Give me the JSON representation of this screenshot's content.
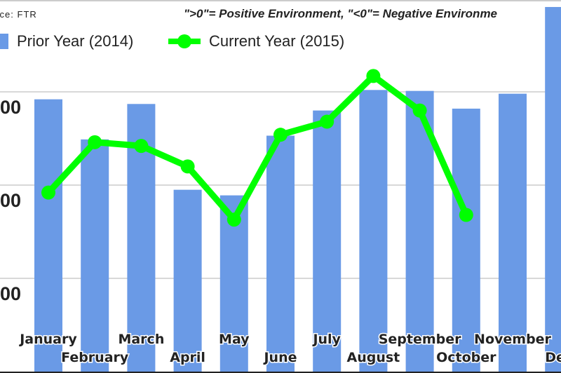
{
  "source": "urce: FTR",
  "subtitle": "\">0\"= Positive Environment, \"<0\"= Negative Environme",
  "chart_data": {
    "type": "bar",
    "categories": [
      "January",
      "February",
      "March",
      "April",
      "May",
      "June",
      "July",
      "August",
      "September",
      "October",
      "November",
      "Dec"
    ],
    "series": [
      {
        "name": "Prior Year (2014)",
        "type": "bar",
        "color": "#6a9ae6",
        "values": [
          2.92,
          2.49,
          2.87,
          1.95,
          1.89,
          2.53,
          2.8,
          3.02,
          3.01,
          2.82,
          2.98,
          3.91
        ]
      },
      {
        "name": "Current Year (2015)",
        "type": "line",
        "color": "#00ff00",
        "values": [
          1.92,
          2.46,
          2.42,
          2.2,
          1.63,
          2.54,
          2.68,
          3.17,
          2.8,
          1.68,
          null,
          null
        ]
      }
    ],
    "y_tick_labels": [
      "00",
      "00",
      "00"
    ],
    "y_ticks": [
      3,
      2,
      1
    ],
    "ylim": [
      0,
      4
    ],
    "grid": true,
    "legend": "top-left"
  }
}
